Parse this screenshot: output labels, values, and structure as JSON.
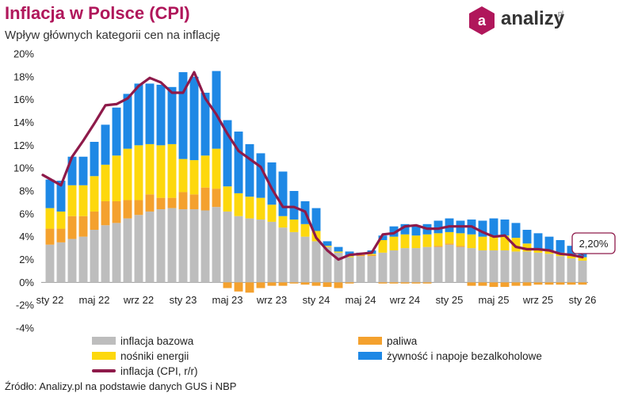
{
  "header": {
    "title": "Inflacja w Polsce (CPI)",
    "subtitle": "Wpływ głównych kategorii cen na inflację"
  },
  "logo": {
    "name": "analizy",
    "suffix": "pl",
    "letter": "a"
  },
  "source": "Źródło: Analizy.pl na podstawie danych GUS i NBP",
  "colors": {
    "bazowa": "#bdbdbd",
    "paliwa": "#f4a12e",
    "energia": "#fdd80d",
    "zywnosc": "#1e88e5",
    "inflacja": "#8e1a4a",
    "brand": "#b0175b"
  },
  "chart_data": {
    "type": "bar",
    "stacked": true,
    "x": [
      "2022-01",
      "2022-02",
      "2022-03",
      "2022-04",
      "2022-05",
      "2022-06",
      "2022-07",
      "2022-08",
      "2022-09",
      "2022-10",
      "2022-11",
      "2022-12",
      "2023-01",
      "2023-02",
      "2023-03",
      "2023-04",
      "2023-05",
      "2023-06",
      "2023-07",
      "2023-08",
      "2023-09",
      "2023-10",
      "2023-11",
      "2023-12",
      "2024-01",
      "2024-02",
      "2024-03",
      "2024-04",
      "2024-05",
      "2024-06",
      "2024-07",
      "2024-08",
      "2024-09",
      "2024-10",
      "2024-11",
      "2024-12",
      "2025-01",
      "2025-02",
      "2025-03",
      "2025-04",
      "2025-05",
      "2025-06",
      "2025-07",
      "2025-08",
      "2025-09",
      "2025-10",
      "2025-11",
      "2025-12",
      "2026-01"
    ],
    "tick_labels": [
      {
        "index": 0,
        "label": "sty 22"
      },
      {
        "index": 4,
        "label": "maj 22"
      },
      {
        "index": 8,
        "label": "wrz 22"
      },
      {
        "index": 12,
        "label": "sty 23"
      },
      {
        "index": 16,
        "label": "maj 23"
      },
      {
        "index": 20,
        "label": "wrz 23"
      },
      {
        "index": 24,
        "label": "sty 24"
      },
      {
        "index": 28,
        "label": "maj 24"
      },
      {
        "index": 32,
        "label": "wrz 24"
      },
      {
        "index": 36,
        "label": "sty 25"
      },
      {
        "index": 40,
        "label": "maj 25"
      },
      {
        "index": 44,
        "label": "wrz 25"
      },
      {
        "index": 48,
        "label": "sty 26"
      }
    ],
    "series": [
      {
        "name": "inflacja bazowa",
        "key": "bazowa",
        "kind": "bar",
        "values": [
          3.3,
          3.5,
          3.8,
          4.0,
          4.6,
          5.0,
          5.2,
          5.6,
          5.9,
          6.2,
          6.4,
          6.5,
          6.4,
          6.4,
          6.3,
          6.6,
          6.2,
          5.8,
          5.6,
          5.5,
          5.3,
          4.8,
          4.4,
          4.0,
          3.6,
          3.1,
          2.6,
          2.2,
          2.3,
          2.3,
          2.6,
          2.8,
          3.0,
          3.0,
          3.1,
          3.1,
          3.3,
          3.1,
          3.0,
          2.8,
          2.8,
          2.8,
          2.7,
          2.7,
          2.6,
          2.5,
          2.3,
          2.1,
          1.9
        ]
      },
      {
        "name": "paliwa",
        "key": "paliwa",
        "kind": "bar",
        "values": [
          1.4,
          1.2,
          2.0,
          1.8,
          1.6,
          2.1,
          1.9,
          1.6,
          1.3,
          1.5,
          1.0,
          0.9,
          1.5,
          1.3,
          2.0,
          1.6,
          -0.5,
          -0.8,
          -0.9,
          -0.5,
          -0.3,
          -0.3,
          -0.1,
          -0.2,
          -0.3,
          -0.4,
          -0.5,
          -0.1,
          0.1,
          0.1,
          -0.1,
          -0.1,
          -0.1,
          -0.1,
          -0.1,
          0.1,
          0.1,
          0.1,
          -0.3,
          -0.3,
          -0.4,
          -0.4,
          -0.3,
          -0.3,
          -0.2,
          -0.2,
          -0.2,
          -0.2,
          -0.2
        ]
      },
      {
        "name": "nośniki energii",
        "key": "energia",
        "kind": "bar",
        "values": [
          1.8,
          1.5,
          2.7,
          2.7,
          3.1,
          3.2,
          4.0,
          4.5,
          4.8,
          4.4,
          4.6,
          4.7,
          2.9,
          3.0,
          2.8,
          3.5,
          2.2,
          2.0,
          1.9,
          1.9,
          1.5,
          1.0,
          1.1,
          1.1,
          0.9,
          0.1,
          0.1,
          0.1,
          0.1,
          0.1,
          1.1,
          1.2,
          1.2,
          1.1,
          1.1,
          1.1,
          1.0,
          1.1,
          1.2,
          1.2,
          1.3,
          1.3,
          1.2,
          0.7,
          0.3,
          0.3,
          0.3,
          0.3,
          0.3
        ]
      },
      {
        "name": "żywność i napoje bezalkoholowe",
        "key": "zywnosc",
        "kind": "bar",
        "values": [
          2.5,
          2.7,
          2.5,
          2.5,
          3.0,
          3.5,
          4.2,
          4.8,
          5.4,
          5.3,
          5.3,
          5.0,
          7.6,
          7.3,
          5.5,
          6.8,
          5.8,
          5.4,
          4.6,
          3.9,
          3.7,
          3.9,
          2.5,
          2.0,
          2.0,
          0.4,
          0.4,
          0.4,
          0.1,
          0.3,
          0.4,
          0.9,
          0.9,
          0.8,
          0.9,
          1.1,
          1.2,
          1.1,
          1.3,
          1.4,
          1.5,
          1.4,
          1.3,
          1.2,
          1.4,
          1.2,
          1.1,
          0.8,
          0.5
        ]
      },
      {
        "name": "inflacja (CPI, r/r)",
        "key": "inflacja",
        "kind": "line",
        "values": [
          9.4,
          8.5,
          11.0,
          12.4,
          13.9,
          15.5,
          15.6,
          16.1,
          17.2,
          17.9,
          17.5,
          16.6,
          16.6,
          18.4,
          16.1,
          14.7,
          13.0,
          11.5,
          10.8,
          10.1,
          8.2,
          6.6,
          6.6,
          6.2,
          3.9,
          2.8,
          2.0,
          2.4,
          2.5,
          2.6,
          4.2,
          4.3,
          4.9,
          5.0,
          4.7,
          4.7,
          4.9,
          4.9,
          4.9,
          4.4,
          4.0,
          4.1,
          3.1,
          2.9,
          2.9,
          2.8,
          2.5,
          2.4,
          2.2
        ]
      }
    ],
    "annotation": {
      "label": "2,20%",
      "index": 48
    },
    "y_ticks": [
      "-4%",
      "-2%",
      "0%",
      "2%",
      "4%",
      "6%",
      "8%",
      "10%",
      "12%",
      "14%",
      "16%",
      "18%",
      "20%"
    ],
    "ylim": [
      -4,
      20
    ],
    "grid": false,
    "legend_placement": "bottom"
  }
}
